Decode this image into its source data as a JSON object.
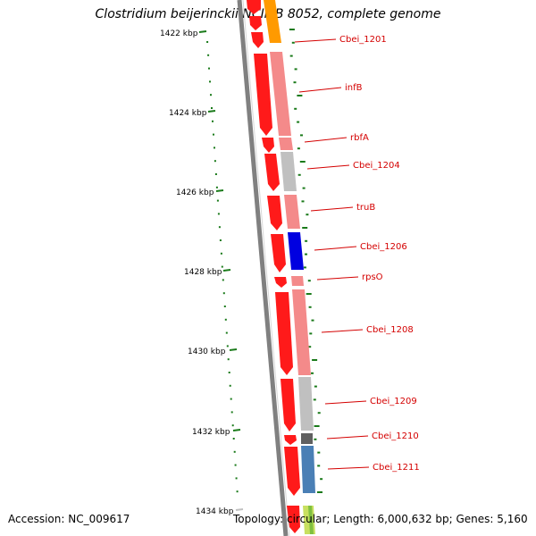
{
  "title": "Clostridium beijerinckii NCIMB 8052, complete genome",
  "footer": {
    "accession": "Accession: NC_009617",
    "summary": "Topology: circular; Length: 6,000,632 bp; Genes: 5,160"
  },
  "ticks": [
    "1422 kbp",
    "1424 kbp",
    "1426 kbp",
    "1428 kbp",
    "1430 kbp",
    "1432 kbp",
    "1434 kbp"
  ],
  "genes": [
    {
      "label": "Cbei_1201",
      "color": "#ff9a00"
    },
    {
      "label": "infB",
      "color": "#f48a8a"
    },
    {
      "label": "rbfA",
      "color": "#f48a8a"
    },
    {
      "label": "Cbei_1204",
      "color": "#c0c0c0"
    },
    {
      "label": "truB",
      "color": "#f48a8a"
    },
    {
      "label": "Cbei_1206",
      "color": "#0000e0"
    },
    {
      "label": "rpsO",
      "color": "#f48a8a"
    },
    {
      "label": "Cbei_1208",
      "color": "#f48a8a"
    },
    {
      "label": "Cbei_1209",
      "color": "#c0c0c0"
    },
    {
      "label": "Cbei_1210",
      "color": "#606060"
    },
    {
      "label": "Cbei_1211",
      "color": "#4a7fb5"
    }
  ],
  "colors": {
    "cds": "#ff1a1a",
    "label": "#d40000",
    "gc_skew": "#1a7a1a",
    "backbone": "#808080"
  }
}
